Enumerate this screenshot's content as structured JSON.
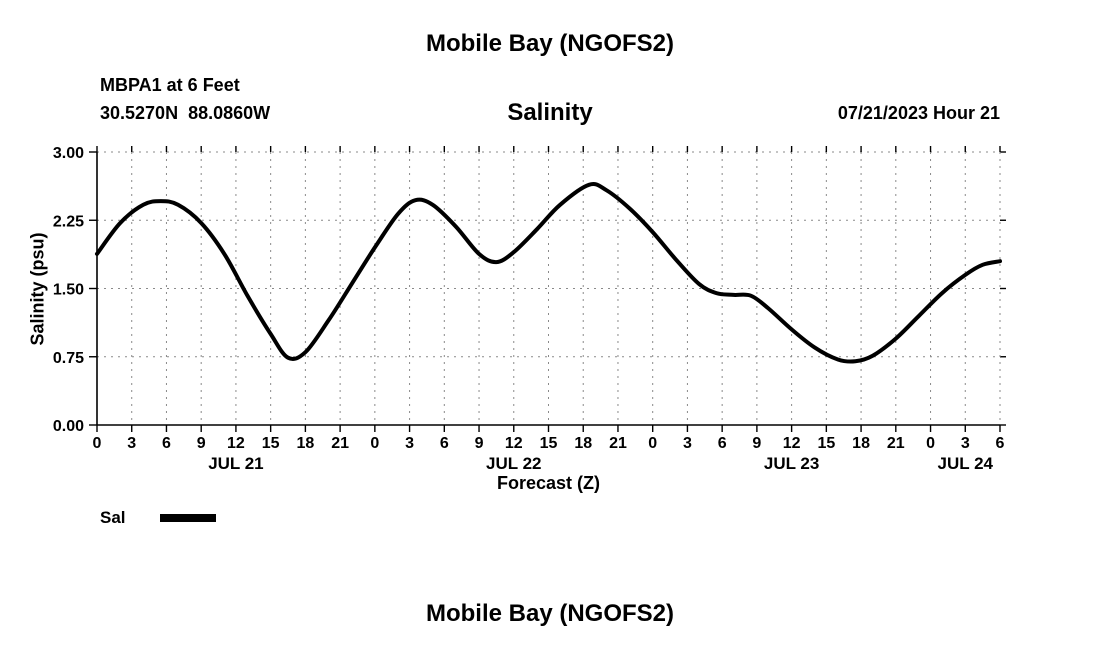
{
  "page": {
    "top_title": "Mobile Bay (NGOFS2)",
    "bottom_title": "Mobile Bay (NGOFS2)"
  },
  "header": {
    "station": "MBPA1 at 6 Feet",
    "coordinates": "30.5270N  88.0860W",
    "datetime": "07/21/2023 Hour 21"
  },
  "chart_data": {
    "type": "line",
    "title": "Salinity",
    "xlabel": "Forecast (Z)",
    "ylabel": "Salinity (psu)",
    "ylim": [
      0,
      3
    ],
    "yticks": [
      0,
      0.75,
      1.5,
      2.25,
      3
    ],
    "ytick_labels": [
      "0.00",
      "0.75",
      "1.50",
      "2.25",
      "3.00"
    ],
    "xlim": [
      0,
      78
    ],
    "xtick_step_hours": 3,
    "xtick_labels": [
      "0",
      "3",
      "6",
      "9",
      "12",
      "15",
      "18",
      "21",
      "0",
      "3",
      "6",
      "9",
      "12",
      "15",
      "18",
      "21",
      "0",
      "3",
      "6",
      "9",
      "12",
      "15",
      "18",
      "21",
      "0",
      "3",
      "6"
    ],
    "day_labels": [
      {
        "label": "JUL 21",
        "hour": 12
      },
      {
        "label": "JUL 22",
        "hour": 36
      },
      {
        "label": "JUL 23",
        "hour": 60
      },
      {
        "label": "JUL 24",
        "hour": 75
      }
    ],
    "grid": true,
    "legend": [
      {
        "name": "Sal",
        "color": "#000000",
        "line_width": 4
      }
    ],
    "series": [
      {
        "name": "Sal",
        "units": "psu",
        "x_hours": [
          0,
          2,
          4,
          5.5,
          7,
          9,
          11,
          13,
          15,
          16.5,
          18,
          20,
          22,
          24,
          26,
          27.5,
          29,
          31,
          33,
          34.5,
          36,
          38,
          40,
          42.5,
          44,
          46,
          48,
          50,
          52,
          53.5,
          55,
          56.5,
          58,
          60,
          62,
          64,
          65.5,
          67,
          69,
          71,
          73,
          75,
          76.5,
          78
        ],
        "values": [
          1.88,
          2.22,
          2.42,
          2.46,
          2.42,
          2.22,
          1.88,
          1.42,
          1.0,
          0.74,
          0.8,
          1.15,
          1.55,
          1.95,
          2.32,
          2.47,
          2.42,
          2.18,
          1.88,
          1.79,
          1.9,
          2.15,
          2.42,
          2.64,
          2.58,
          2.38,
          2.12,
          1.82,
          1.55,
          1.45,
          1.43,
          1.42,
          1.28,
          1.05,
          0.85,
          0.72,
          0.7,
          0.76,
          0.95,
          1.2,
          1.45,
          1.65,
          1.76,
          1.8
        ]
      }
    ]
  }
}
